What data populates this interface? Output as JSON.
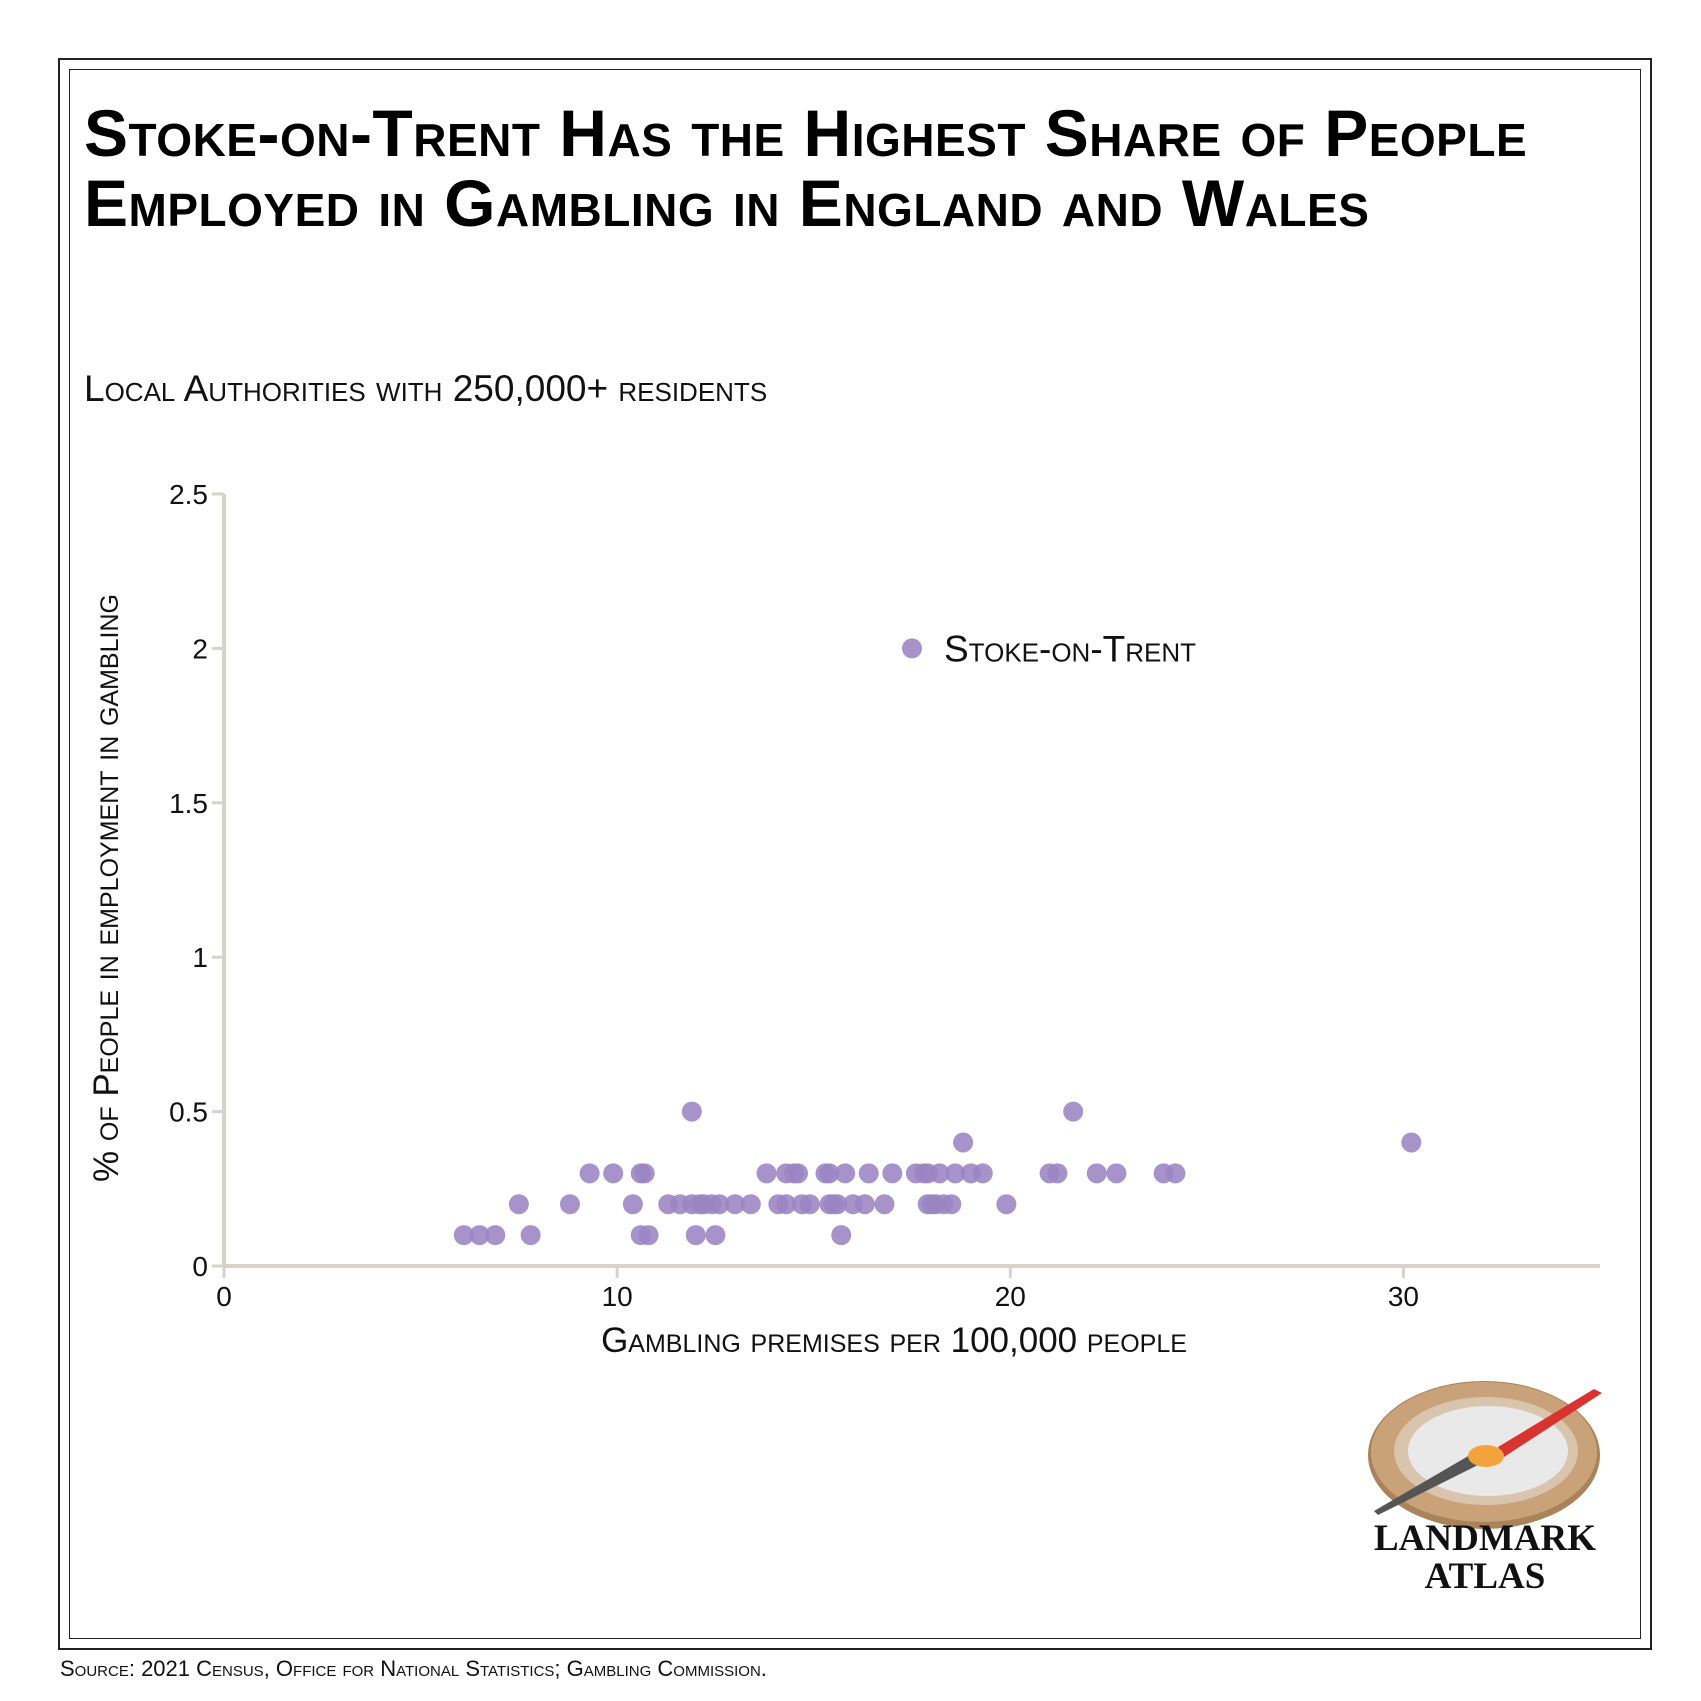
{
  "title": "Stoke-on-Trent Has the Highest Share of People Employed in Gambling in England and Wales",
  "subtitle": "Local Authorities with 250,000+ residents",
  "source": "Source: 2021 Census, Office for National Statistics; Gambling Commission.",
  "logo": {
    "line1": "LANDMARK",
    "line2": "ATLAS"
  },
  "colors": {
    "point": "#9b84c2",
    "axis": "#d6d2cc",
    "text": "#111111"
  },
  "chart_data": {
    "type": "scatter",
    "xlabel": "Gambling premises per 100,000 people",
    "ylabel": "% of People in employment in gambling",
    "xlim": [
      0,
      35
    ],
    "ylim": [
      0,
      2.5
    ],
    "xticks": [
      0,
      10,
      20,
      30
    ],
    "yticks": [
      0,
      0.5,
      1,
      1.5,
      2,
      2.5
    ],
    "ytick_labels": [
      "0",
      "0.5",
      "1",
      "1.5",
      "2",
      "2.5"
    ],
    "xtick_labels": [
      "0",
      "10",
      "20",
      "30"
    ],
    "annotation": {
      "label": "Stoke-on-Trent",
      "x": 17.5,
      "y": 2.0
    },
    "points": [
      [
        6.1,
        0.1
      ],
      [
        6.5,
        0.1
      ],
      [
        6.9,
        0.1
      ],
      [
        7.5,
        0.2
      ],
      [
        7.8,
        0.1
      ],
      [
        8.8,
        0.2
      ],
      [
        9.3,
        0.3
      ],
      [
        9.9,
        0.3
      ],
      [
        10.4,
        0.2
      ],
      [
        10.6,
        0.3
      ],
      [
        10.7,
        0.3
      ],
      [
        10.6,
        0.1
      ],
      [
        10.8,
        0.1
      ],
      [
        11.3,
        0.2
      ],
      [
        11.6,
        0.2
      ],
      [
        11.9,
        0.5
      ],
      [
        11.9,
        0.2
      ],
      [
        12.1,
        0.2
      ],
      [
        12.2,
        0.2
      ],
      [
        12.0,
        0.1
      ],
      [
        12.4,
        0.2
      ],
      [
        12.5,
        0.1
      ],
      [
        12.6,
        0.2
      ],
      [
        13.0,
        0.2
      ],
      [
        13.4,
        0.2
      ],
      [
        13.8,
        0.3
      ],
      [
        14.1,
        0.2
      ],
      [
        14.3,
        0.3
      ],
      [
        14.3,
        0.2
      ],
      [
        14.5,
        0.3
      ],
      [
        14.6,
        0.3
      ],
      [
        14.7,
        0.2
      ],
      [
        14.9,
        0.2
      ],
      [
        15.3,
        0.3
      ],
      [
        15.4,
        0.3
      ],
      [
        15.4,
        0.2
      ],
      [
        15.5,
        0.2
      ],
      [
        15.6,
        0.2
      ],
      [
        15.7,
        0.1
      ],
      [
        15.8,
        0.3
      ],
      [
        16.0,
        0.2
      ],
      [
        16.3,
        0.2
      ],
      [
        16.4,
        0.3
      ],
      [
        16.8,
        0.2
      ],
      [
        17.0,
        0.3
      ],
      [
        17.6,
        0.3
      ],
      [
        17.8,
        0.3
      ],
      [
        17.9,
        0.3
      ],
      [
        17.9,
        0.2
      ],
      [
        18.0,
        0.2
      ],
      [
        18.1,
        0.2
      ],
      [
        18.2,
        0.3
      ],
      [
        18.3,
        0.2
      ],
      [
        18.5,
        0.2
      ],
      [
        18.6,
        0.3
      ],
      [
        18.8,
        0.4
      ],
      [
        19.0,
        0.3
      ],
      [
        19.3,
        0.3
      ],
      [
        19.9,
        0.2
      ],
      [
        21.0,
        0.3
      ],
      [
        21.2,
        0.3
      ],
      [
        21.6,
        0.5
      ],
      [
        22.2,
        0.3
      ],
      [
        22.7,
        0.3
      ],
      [
        23.9,
        0.3
      ],
      [
        24.2,
        0.3
      ],
      [
        30.2,
        0.4
      ]
    ]
  }
}
